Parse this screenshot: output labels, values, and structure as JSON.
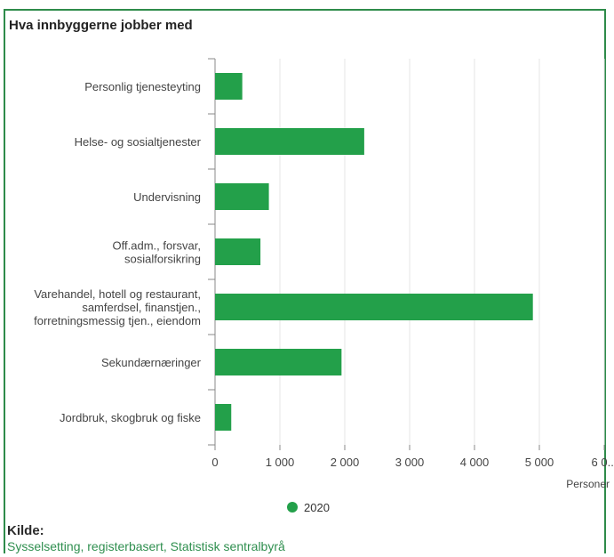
{
  "chart_data": {
    "type": "bar",
    "orientation": "horizontal",
    "title": "Hva innbyggerne jobber med",
    "categories": [
      [
        "Personlig tjenesteyting"
      ],
      [
        "Helse- og sosialtjenester"
      ],
      [
        "Undervisning"
      ],
      [
        "Off.adm., forsvar,",
        "sosialforsikring"
      ],
      [
        "Varehandel, hotell og restaurant,",
        "samferdsel, finanstjen.,",
        "forretningsmessig tjen., eiendom"
      ],
      [
        "Sekundærnæringer"
      ],
      [
        "Jordbruk, skogbruk og fiske"
      ]
    ],
    "series": [
      {
        "name": "2020",
        "values": [
          420,
          2300,
          830,
          700,
          4900,
          1950,
          250
        ]
      }
    ],
    "xlim": [
      0,
      6000
    ],
    "xticks": [
      0,
      1000,
      2000,
      3000,
      4000,
      5000,
      6000
    ],
    "xtick_labels": [
      "0",
      "1 000",
      "2 000",
      "3 000",
      "4 000",
      "5 000",
      "6 0..."
    ],
    "xlabel": "Personer",
    "grid": true,
    "legend": "bottom-center"
  },
  "colors": {
    "bar": "#23a04a",
    "grid": "#e6e6e6",
    "axis": "#888888",
    "frame": "#2e8b4a"
  },
  "source": {
    "heading": "Kilde:",
    "link_text": "Sysselsetting, registerbasert, Statistisk sentralbyrå"
  }
}
